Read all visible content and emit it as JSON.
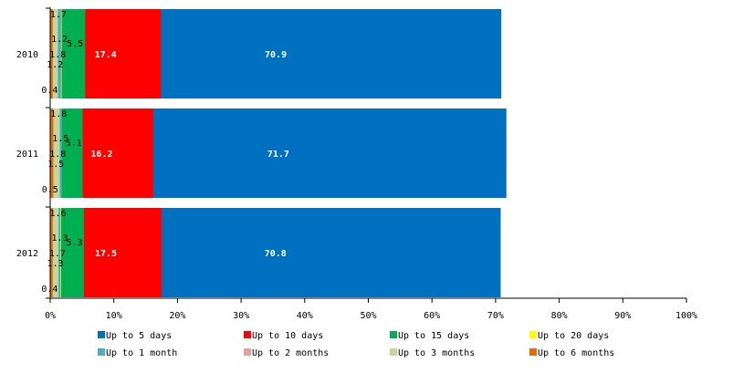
{
  "chart_data": {
    "type": "bar",
    "orientation": "horizontal",
    "stacked": true,
    "categories": [
      "2010",
      "2011",
      "2012"
    ],
    "xlim": [
      0,
      100
    ],
    "x_ticks": [
      "0%",
      "10%",
      "20%",
      "30%",
      "40%",
      "50%",
      "60%",
      "70%",
      "80%",
      "90%",
      "100%"
    ],
    "grid": false,
    "legend_position": "bottom",
    "series": [
      {
        "name": "Up to 5 days",
        "color": "#0070C0",
        "values": [
          70.9,
          71.7,
          70.8
        ],
        "labels": [
          "70.9",
          "71.7",
          "70.8"
        ]
      },
      {
        "name": "Up to 10 days",
        "color": "#FF0000",
        "values": [
          17.4,
          16.2,
          17.5
        ],
        "labels": [
          "17.4",
          "16.2",
          "17.5"
        ]
      },
      {
        "name": "Up to 15 days",
        "color": "#00B050",
        "values": [
          5.5,
          5.1,
          5.3
        ],
        "labels": [
          "5.5",
          "5.1",
          "5.3"
        ]
      },
      {
        "name": "Up to 20 days",
        "color": "#FFFF00",
        "values": [
          1.8,
          1.8,
          1.7
        ],
        "labels": [
          "1.8",
          "1.8",
          "1.7"
        ]
      },
      {
        "name": "Up to 1 month",
        "color": "#4BACC6",
        "values": [
          1.7,
          1.8,
          1.6
        ],
        "labels": [
          "1.7",
          "1.8",
          "1.6"
        ]
      },
      {
        "name": "Up to 2 months",
        "color": "#E6A0A0",
        "values": [
          1.2,
          1.5,
          1.3
        ],
        "labels": [
          "1.2",
          "1.5",
          "1.3"
        ]
      },
      {
        "name": "Up to 3 months",
        "color": "#C4D79B",
        "values": [
          1.2,
          1.5,
          1.3
        ],
        "labels": [
          "1.2",
          "1.5",
          "1.3"
        ]
      },
      {
        "name": "Up to 6 months",
        "color": "#E46C0A",
        "values": [
          0.4,
          0.5,
          0.4
        ],
        "labels": [
          "0.4",
          "0.5",
          "0.4"
        ]
      }
    ]
  }
}
